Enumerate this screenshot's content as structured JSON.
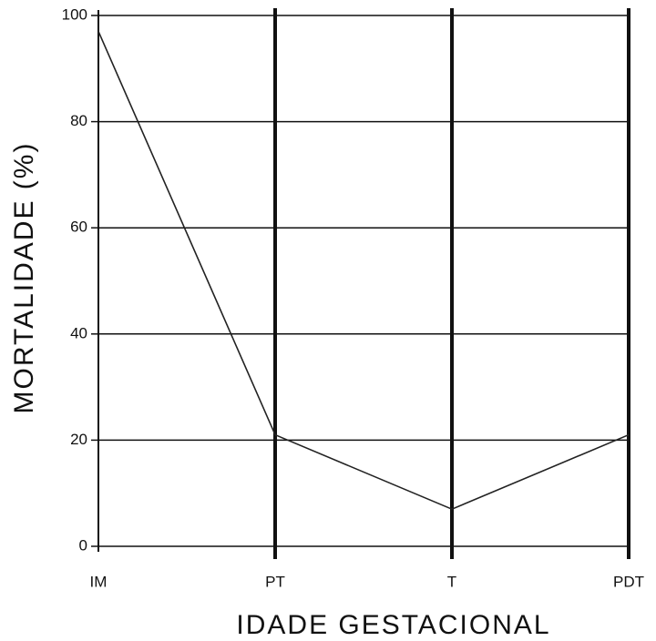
{
  "chart_data": {
    "type": "line",
    "x_label": "IDADE GESTACIONAL",
    "y_label": "MORTALIDADE (%)",
    "categories": [
      "IM",
      "PT",
      "T",
      "PDT"
    ],
    "values": [
      97,
      21,
      7,
      21
    ],
    "color": "#222222",
    "ylim": [
      0,
      100
    ],
    "yticks": [
      0,
      20,
      40,
      60,
      80,
      100
    ],
    "grid": true
  }
}
